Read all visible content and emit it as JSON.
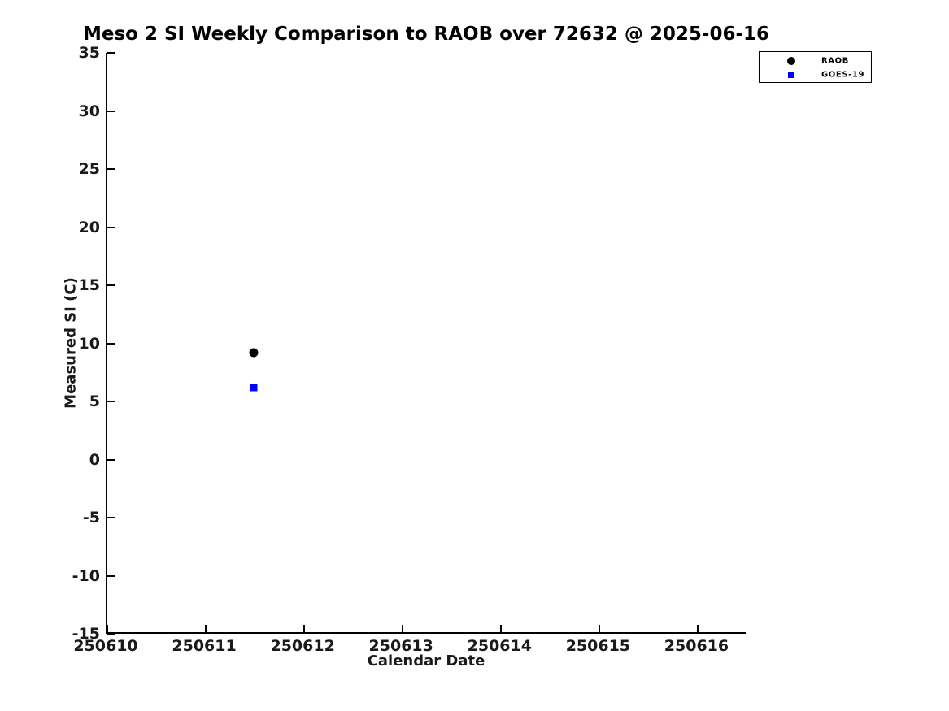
{
  "chart_data": {
    "type": "scatter",
    "title": "Meso 2 SI Weekly Comparison to RAOB over 72632 @ 2025-06-16",
    "xlabel": "Calendar Date",
    "ylabel": "Measured SI (C)",
    "xlim": [
      250610,
      250616.5
    ],
    "ylim": [
      -15,
      35
    ],
    "xticks": [
      250610,
      250611,
      250612,
      250613,
      250614,
      250615,
      250616
    ],
    "yticks": [
      35,
      30,
      25,
      20,
      15,
      10,
      5,
      0,
      -5,
      -10,
      -15
    ],
    "grid": false,
    "background": "#ffffff",
    "axis_color": "#000000",
    "legend_position": "top-right",
    "series": [
      {
        "name": "RAOB",
        "marker": "circle",
        "color": "#000000",
        "points": [
          {
            "x": 250611.5,
            "y": 9.2
          }
        ]
      },
      {
        "name": "GOES-19",
        "marker": "square",
        "color": "#0000ff",
        "points": [
          {
            "x": 250611.5,
            "y": 6.2
          }
        ]
      }
    ]
  }
}
